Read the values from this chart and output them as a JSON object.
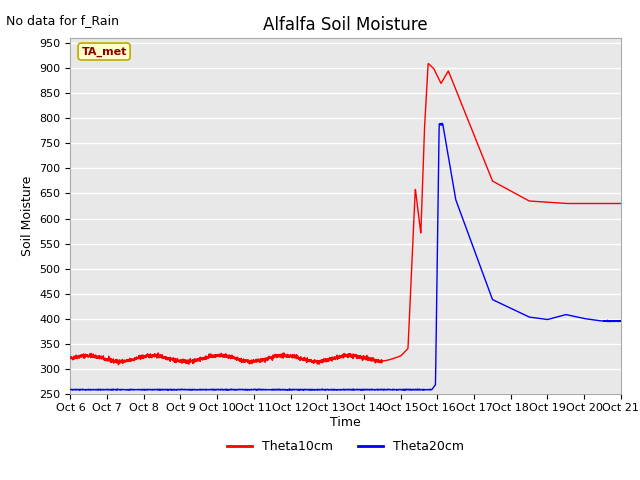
{
  "title": "Alfalfa Soil Moisture",
  "subtitle": "No data for f_Rain",
  "ylabel": "Soil Moisture",
  "xlabel": "Time",
  "ylim": [
    250,
    960
  ],
  "yticks": [
    250,
    300,
    350,
    400,
    450,
    500,
    550,
    600,
    650,
    700,
    750,
    800,
    850,
    900,
    950
  ],
  "x_labels": [
    "Oct 6",
    "Oct 7",
    "Oct 8",
    "Oct 9",
    "Oct 10",
    "Oct 11",
    "Oct 12",
    "Oct 13",
    "Oct 14",
    "Oct 15",
    "Oct 16",
    "Oct 17",
    "Oct 18",
    "Oct 19",
    "Oct 20",
    "Oct 21"
  ],
  "legend_label1": "Theta10cm",
  "legend_label2": "Theta20cm",
  "legend_color1": "#FF0000",
  "legend_color2": "#0000FF",
  "tag_label": "TA_met",
  "tag_bg": "#FFFFCC",
  "tag_border": "#BBAA00",
  "tag_text_color": "#880000",
  "fig_bg": "#FFFFFF",
  "plot_bg": "#E8E8E8",
  "grid_color": "#FFFFFF",
  "title_fontsize": 12,
  "axis_fontsize": 9,
  "tick_fontsize": 8,
  "subtitle_fontsize": 9
}
